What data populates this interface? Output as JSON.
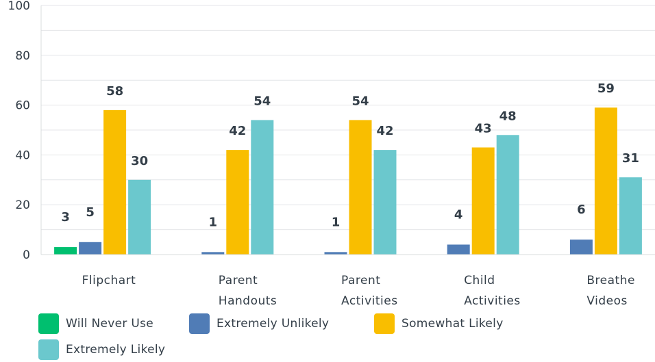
{
  "chart_data": {
    "type": "bar",
    "categories": [
      [
        "Flipchart"
      ],
      [
        "Parent",
        "Handouts"
      ],
      [
        "Parent",
        "Activities"
      ],
      [
        "Child",
        "Activities"
      ],
      [
        "Breathe",
        "Videos"
      ]
    ],
    "series": [
      {
        "name": "Will Never Use",
        "color": "#00bf6f",
        "values": [
          3,
          0,
          0,
          0,
          0
        ],
        "labels": [
          "3",
          null,
          null,
          null,
          null
        ]
      },
      {
        "name": "Extremely Unlikely",
        "color": "#507cb6",
        "values": [
          5,
          1,
          1,
          4,
          6
        ],
        "labels": [
          "5",
          "1",
          "1",
          "4",
          "6"
        ]
      },
      {
        "name": "Somewhat Likely",
        "color": "#f9be00",
        "values": [
          58,
          42,
          54,
          43,
          59
        ],
        "labels": [
          "58",
          "42",
          "54",
          "43",
          "59"
        ]
      },
      {
        "name": "Extremely Likely",
        "color": "#6bc8cd",
        "values": [
          30,
          54,
          42,
          48,
          31
        ],
        "labels": [
          "30",
          "54",
          "42",
          "48",
          "31"
        ]
      }
    ],
    "yticks": [
      0,
      20,
      40,
      60,
      80,
      100
    ],
    "ylim": [
      0,
      100
    ],
    "grid": true,
    "legend_position": "bottom"
  },
  "legend": {
    "items": [
      {
        "label": "Will Never Use",
        "color": "#00bf6f"
      },
      {
        "label": "Extremely Unlikely",
        "color": "#507cb6"
      },
      {
        "label": "Somewhat Likely",
        "color": "#f9be00"
      },
      {
        "label": "Extremely Likely",
        "color": "#6bc8cd"
      }
    ]
  }
}
